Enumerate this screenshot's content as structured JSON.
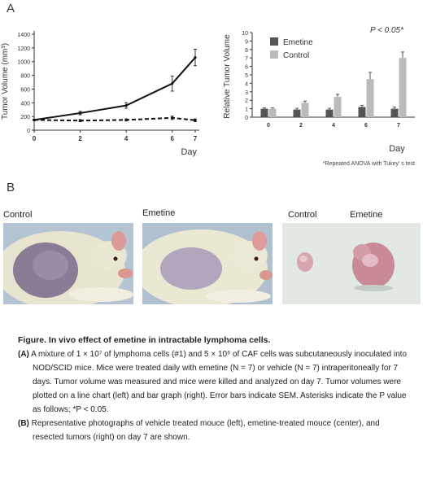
{
  "panel_a_label": "A",
  "panel_b_label": "B",
  "significance": "P < 0.05*",
  "footnote": "*Repeated ANOVA with Tukey’ s test",
  "photo_labels": {
    "control_mouse": "Control",
    "emetine_mouse": "Emetine",
    "control_tumor": "Control",
    "emetine_tumor": "Emetine"
  },
  "chart_data": [
    {
      "type": "line",
      "xlabel": "Day",
      "ylabel": "Tumor Volume (mm³)",
      "x": [
        0,
        2,
        4,
        6,
        7
      ],
      "xticks": [
        0,
        2,
        4,
        6,
        7
      ],
      "yticks": [
        0,
        200,
        400,
        600,
        800,
        1000,
        1200,
        1400
      ],
      "xlim": [
        0,
        7
      ],
      "ylim": [
        0,
        1400
      ],
      "series": [
        {
          "style": "solid",
          "values": [
            150,
            250,
            360,
            680,
            1060
          ],
          "errors": [
            10,
            25,
            40,
            110,
            120
          ]
        },
        {
          "style": "dashed",
          "values": [
            150,
            140,
            150,
            180,
            145
          ],
          "errors": [
            10,
            15,
            15,
            25,
            20
          ]
        }
      ]
    },
    {
      "type": "bar",
      "xlabel": "Day",
      "ylabel": "Relative Tumor Volume",
      "categories": [
        "0",
        "2",
        "4",
        "6",
        "7"
      ],
      "yticks": [
        0,
        1,
        2,
        3,
        4,
        5,
        6,
        7,
        8,
        9,
        10
      ],
      "ylim": [
        0,
        10
      ],
      "legend_position": "top-left",
      "series": [
        {
          "name": "Emetine",
          "color": "#555555",
          "values": [
            1.0,
            0.9,
            0.9,
            1.2,
            1.0
          ],
          "errors": [
            0.1,
            0.15,
            0.15,
            0.2,
            0.2
          ]
        },
        {
          "name": "Control",
          "color": "#bbbbbb",
          "values": [
            1.0,
            1.7,
            2.4,
            4.5,
            7.0
          ],
          "errors": [
            0.1,
            0.2,
            0.3,
            0.8,
            0.7
          ]
        }
      ]
    }
  ],
  "caption": {
    "title": "Figure. In vivo effect of emetine in intractable lymphoma cells.",
    "a_label": "(A)",
    "a_text": "A mixture of 1 × 10⁷ of lymphoma cells (#1) and 5 × 10⁶ of CAF cells was subcutaneously inoculated into NOD/SCID mice. Mice were treated daily with emetine (N = 7) or vehicle (N = 7) intraperitoneally for 7 days. Tumor volume was measured and mice were killed and analyzed on day 7. Tumor volumes were plotted on a line chart (left) and bar graph (right). Error bars indicate SEM. Asterisks indicate the P value as follows; *P < 0.05.",
    "b_label": "(B)",
    "b_text": "Representative photographs of vehicle treated mouce (left), emetine-treated mouce (center), and resected tumors (right) on day 7 are shown."
  }
}
